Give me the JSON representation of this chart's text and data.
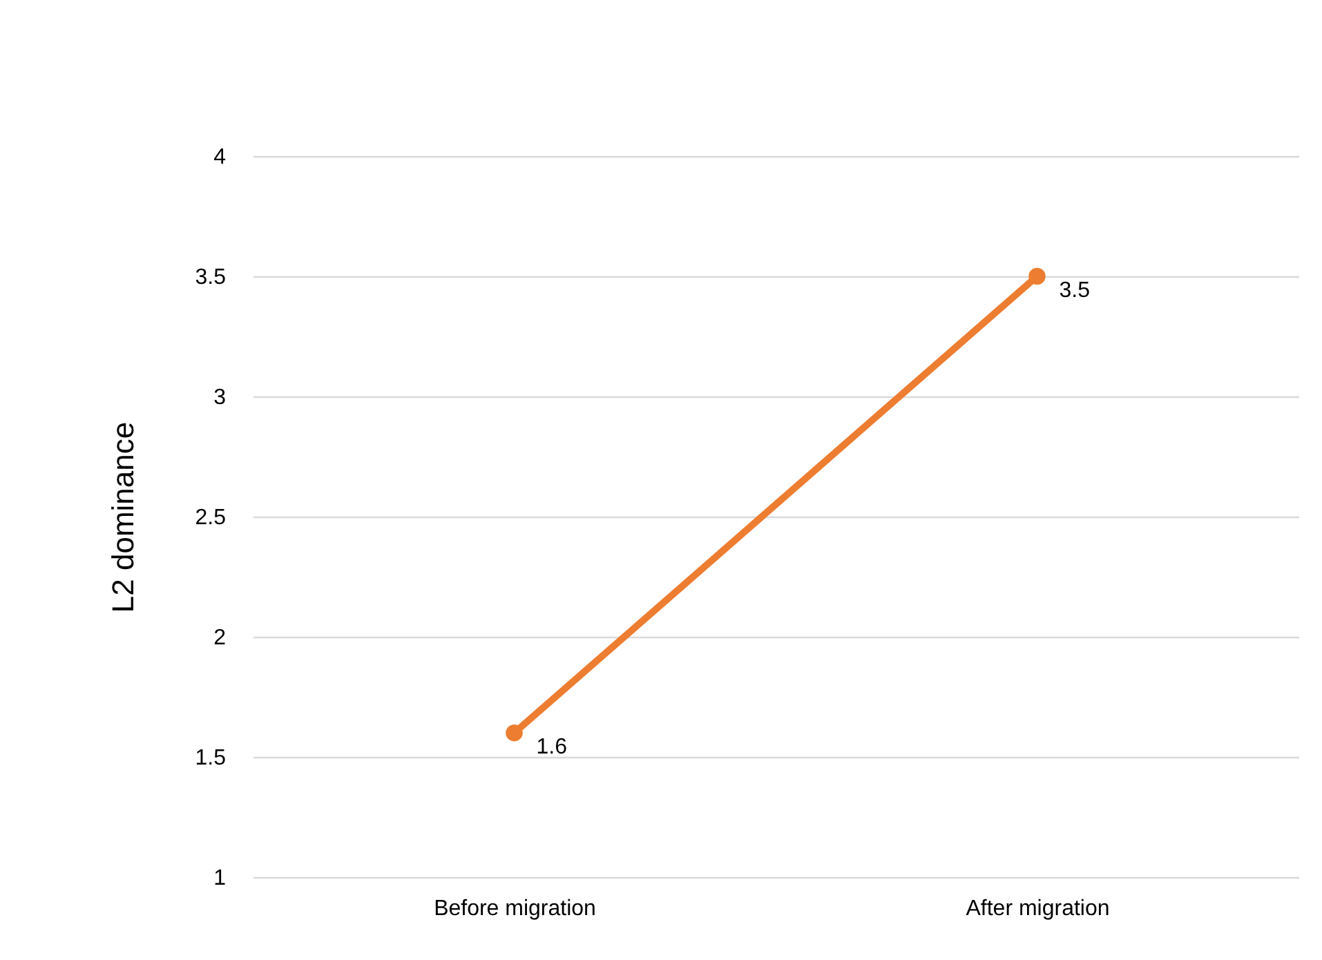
{
  "chart_data": {
    "type": "line",
    "ylabel": "L2 dominance",
    "categories": [
      "Before migration",
      "After migration"
    ],
    "series": [
      {
        "color": "#ed7d31",
        "values": [
          1.6,
          3.5
        ]
      }
    ],
    "ylim": [
      1,
      4
    ],
    "yticks": [
      1,
      1.5,
      2,
      2.5,
      3,
      3.5,
      4
    ],
    "grid": "y",
    "marker": "circle",
    "line_style": "solid",
    "data_labels": true,
    "legend": false
  }
}
